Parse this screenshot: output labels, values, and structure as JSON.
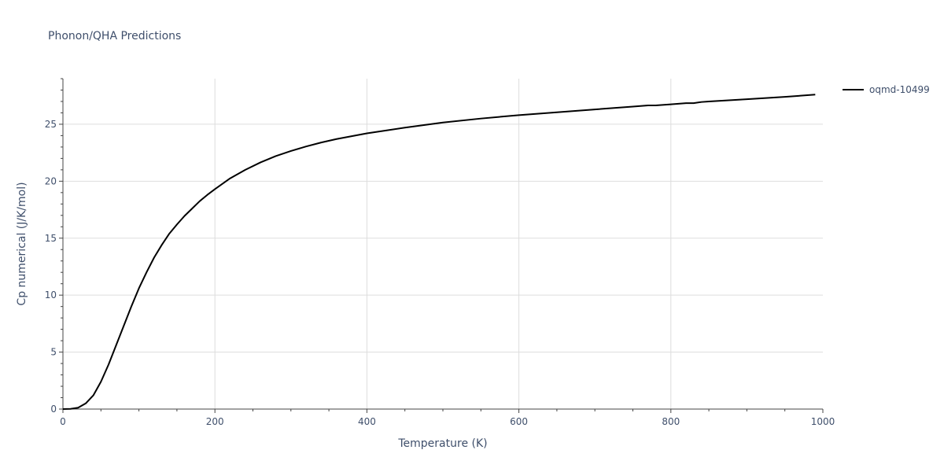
{
  "chart_data": {
    "type": "line",
    "title": "Phonon/QHA Predictions",
    "xlabel": "Temperature (K)",
    "ylabel": "Cp numerical (J/K/mol)",
    "xlim": [
      0,
      1000
    ],
    "ylim": [
      0,
      29
    ],
    "x_ticks": [
      0,
      200,
      400,
      600,
      800,
      1000
    ],
    "x_tick_labels": [
      "0",
      "200",
      "400",
      "600",
      "800",
      "1000"
    ],
    "y_ticks": [
      0,
      5,
      10,
      15,
      20,
      25
    ],
    "y_tick_labels": [
      "0",
      "5",
      "10",
      "15",
      "20",
      "25"
    ],
    "grid": true,
    "legend_position": "top-right",
    "series": [
      {
        "name": "oqmd-10499",
        "color": "#000000",
        "x": [
          0,
          10,
          20,
          30,
          40,
          50,
          60,
          70,
          80,
          90,
          100,
          110,
          120,
          130,
          140,
          150,
          160,
          170,
          180,
          190,
          200,
          220,
          240,
          260,
          280,
          300,
          320,
          340,
          360,
          380,
          400,
          450,
          500,
          550,
          600,
          650,
          700,
          750,
          770,
          780,
          800,
          820,
          830,
          840,
          850,
          900,
          950,
          990
        ],
        "y": [
          0,
          0.02,
          0.12,
          0.5,
          1.2,
          2.4,
          3.9,
          5.6,
          7.3,
          9.0,
          10.6,
          12.0,
          13.3,
          14.4,
          15.4,
          16.2,
          16.95,
          17.6,
          18.25,
          18.8,
          19.3,
          20.25,
          21.0,
          21.65,
          22.2,
          22.65,
          23.05,
          23.4,
          23.7,
          23.95,
          24.2,
          24.7,
          25.15,
          25.5,
          25.8,
          26.05,
          26.3,
          26.55,
          26.65,
          26.65,
          26.75,
          26.85,
          26.85,
          26.95,
          27.0,
          27.2,
          27.4,
          27.6
        ]
      }
    ]
  }
}
